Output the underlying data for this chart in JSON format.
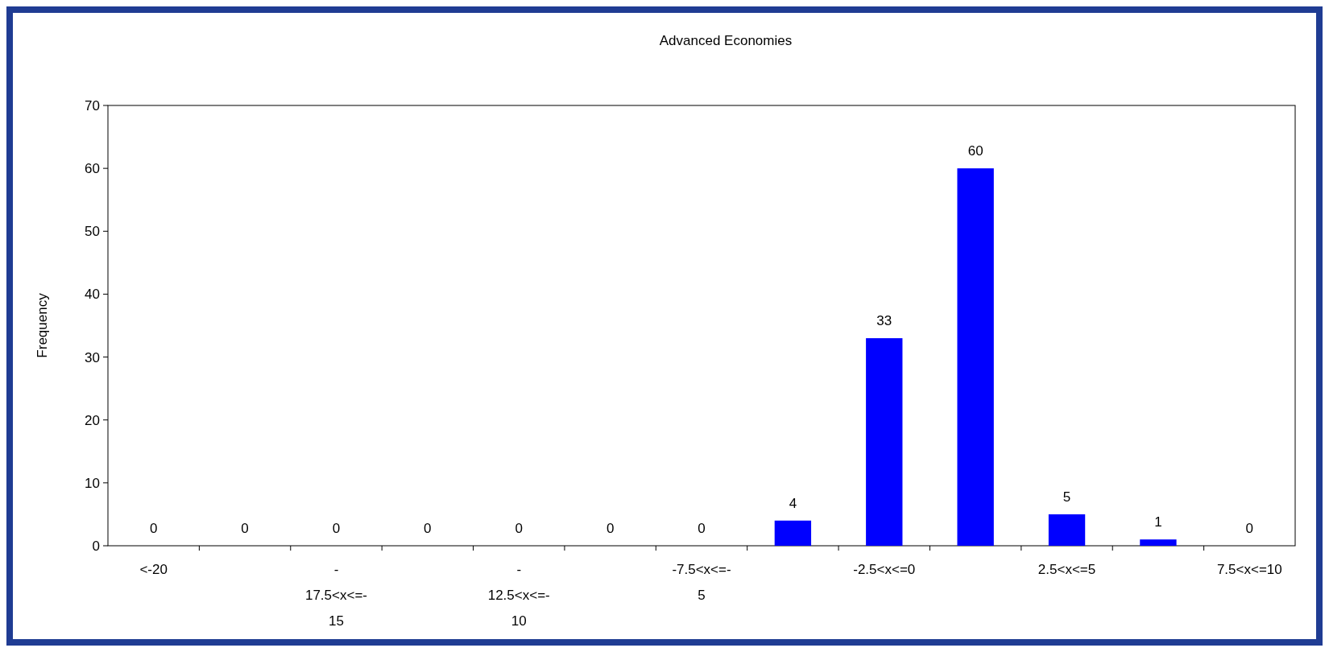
{
  "chart_data": {
    "type": "bar",
    "title": "Advanced Economies",
    "ylabel": "Frequency",
    "categories": [
      "<-20",
      null,
      "-17.5<x<=-15",
      null,
      "-12.5<x<=-10",
      null,
      "-7.5<x<=-5",
      null,
      "-2.5<x<=0",
      null,
      "2.5<x<=5",
      null,
      "7.5<x<=10"
    ],
    "values": [
      0,
      0,
      0,
      0,
      0,
      0,
      0,
      4,
      33,
      60,
      5,
      1,
      0
    ],
    "color": "#0000ff",
    "ylim": [
      0,
      70
    ],
    "yticks": [
      0,
      10,
      20,
      30,
      40,
      50,
      60,
      70
    ],
    "grid": false,
    "data_labels": true
  }
}
